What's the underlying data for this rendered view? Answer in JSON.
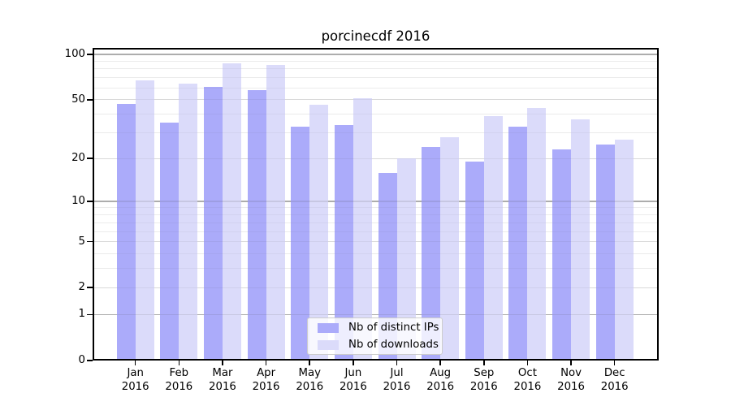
{
  "figure": {
    "title": "porcinecdf 2016",
    "background": "#ffffff"
  },
  "chart_data": {
    "type": "bar",
    "title": "porcinecdf 2016",
    "categories": [
      "Jan",
      "Feb",
      "Mar",
      "Apr",
      "May",
      "Jun",
      "Jul",
      "Aug",
      "Sep",
      "Oct",
      "Nov",
      "Dec"
    ],
    "x_tick_second_line": "2016",
    "series": [
      {
        "name": "Nb of distinct IPs",
        "color": "#ababfa",
        "values": [
          47,
          35,
          61,
          58,
          33,
          34,
          16,
          24,
          19,
          33,
          23,
          25
        ]
      },
      {
        "name": "Nb of downloads",
        "color": "#dbdbfa",
        "values": [
          67,
          64,
          87,
          85,
          46,
          51,
          20,
          28,
          39,
          44,
          37,
          27
        ]
      }
    ],
    "yscale": "log1p",
    "ylim": [
      0,
      110
    ],
    "y_major_ticks": [
      0,
      1,
      2,
      5,
      10,
      20,
      50,
      100
    ],
    "y_strong_gridlines": [
      1,
      10,
      100
    ],
    "y_light_gridlines": [
      2,
      5,
      20,
      50
    ],
    "y_minor_gridlines": [
      3,
      4,
      6,
      7,
      8,
      9,
      30,
      40,
      60,
      70,
      80,
      90
    ],
    "grid": "horizontal",
    "legend_position": "lower-center"
  },
  "colors": {
    "grid_major_strong": "#bdbdbd",
    "grid_major_light": "#e6e6e6",
    "grid_minor": "#f5f5f5",
    "spine": "#000000",
    "text": "#000000",
    "legend_border": "#cccccc"
  }
}
